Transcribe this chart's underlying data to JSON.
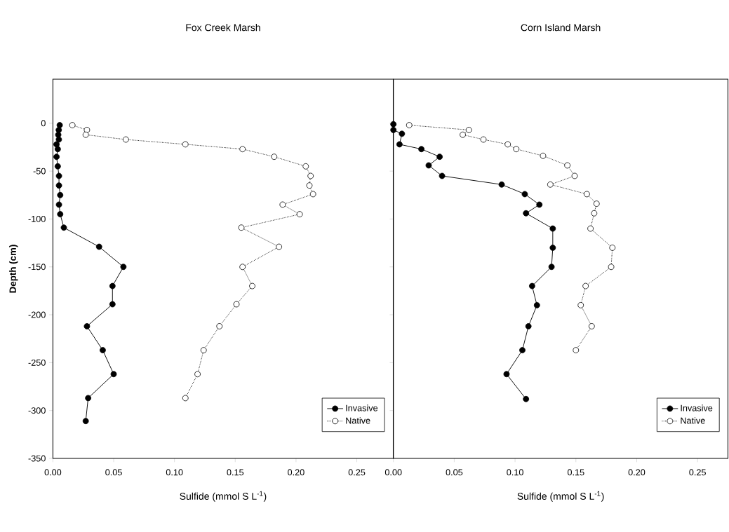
{
  "chart_data": [
    {
      "type": "line",
      "title": "Fox Creek Marsh",
      "xlabel": "Sulfide (mmol S L$^{-1}$)",
      "ylabel": "Depth (cm)",
      "xlim": [
        0,
        0.28
      ],
      "ylim": [
        -350,
        46
      ],
      "xticks": [
        {
          "value": 0,
          "label": "0.00"
        },
        {
          "value": 0.05,
          "label": "0.05"
        },
        {
          "value": 0.1,
          "label": "0.10"
        },
        {
          "value": 0.15,
          "label": "0.15"
        },
        {
          "value": 0.2,
          "label": "0.20"
        },
        {
          "value": 0.25,
          "label": "0.25"
        }
      ],
      "yticks": [
        -350,
        -300,
        -250,
        -200,
        -150,
        -100,
        -50,
        0
      ],
      "marker": "circle",
      "legend": "bottom right",
      "grid": false,
      "series": [
        {
          "name": "Invasive",
          "color": "#000000",
          "line_style": "solid",
          "x": [
            0.0056,
            0.0048,
            0.0044,
            0.0049,
            0.003,
            0.004,
            0.003,
            0.004,
            0.005,
            0.005,
            0.006,
            0.005,
            0.006,
            0.009,
            0.038,
            0.058,
            0.049,
            0.049,
            0.028,
            0.041,
            0.05,
            0.029,
            0.027
          ],
          "values": [
            -2,
            -7,
            -12,
            -17,
            -22,
            -27,
            -35,
            -45,
            -55,
            -65,
            -75,
            -85,
            -95,
            -109,
            -129,
            -150,
            -170,
            -189,
            -212,
            -237,
            -262,
            -287,
            -311
          ]
        },
        {
          "name": "Native",
          "color": "#000000",
          "line_style": "dotted",
          "x": [
            0.016,
            0.028,
            0.027,
            0.06,
            0.109,
            0.156,
            0.182,
            0.208,
            0.212,
            0.211,
            0.214,
            0.189,
            0.203,
            0.155,
            0.186,
            0.156,
            0.164,
            0.151,
            0.137,
            0.124,
            0.119,
            0.109
          ],
          "values": [
            -2,
            -7,
            -12,
            -17,
            -22,
            -27,
            -35,
            -45,
            -55,
            -65,
            -74,
            -85,
            -95,
            -109,
            -129,
            -150,
            -170,
            -189,
            -212,
            -237,
            -262,
            -287
          ]
        }
      ]
    },
    {
      "type": "line",
      "title": "Corn Island Marsh",
      "xlabel": "Sulfide (mmol S L$^{-1}$)",
      "xlim": [
        0,
        0.275
      ],
      "ylim": [
        -350,
        46
      ],
      "xticks": [
        {
          "value": 0,
          "label": "0.00"
        },
        {
          "value": 0.05,
          "label": "0.05"
        },
        {
          "value": 0.1,
          "label": "0.10"
        },
        {
          "value": 0.15,
          "label": "0.15"
        },
        {
          "value": 0.2,
          "label": "0.20"
        },
        {
          "value": 0.25,
          "label": "0.25"
        }
      ],
      "yticks": [
        -350,
        -300,
        -250,
        -200,
        -150,
        -100,
        -50,
        0
      ],
      "tick_labels": "x",
      "marker": "circle",
      "legend": "bottom right",
      "grid": false,
      "series": [
        {
          "name": "Invasive",
          "color": "#000000",
          "line_style": "solid",
          "x": [
            0.0,
            0.0,
            0.007,
            0.005,
            0.023,
            0.038,
            0.029,
            0.04,
            0.089,
            0.108,
            0.12,
            0.109,
            0.131,
            0.131,
            0.13,
            0.114,
            0.118,
            0.111,
            0.106,
            0.093,
            0.109
          ],
          "values": [
            -1,
            -7,
            -11,
            -22,
            -27,
            -35,
            -44,
            -55,
            -64,
            -74,
            -85,
            -94,
            -110,
            -130,
            -150,
            -170,
            -190,
            -212,
            -237,
            -262,
            -288
          ]
        },
        {
          "name": "Native",
          "color": "#000000",
          "line_style": "dotted",
          "x": [
            0.013,
            0.062,
            0.057,
            0.074,
            0.094,
            0.101,
            0.123,
            0.143,
            0.149,
            0.129,
            0.159,
            0.167,
            0.165,
            0.162,
            0.18,
            0.179,
            0.158,
            0.154,
            0.163,
            0.15
          ],
          "values": [
            -2,
            -7,
            -12,
            -17,
            -22,
            -27,
            -34,
            -44,
            -55,
            -64,
            -74,
            -84,
            -94,
            -110,
            -130,
            -150,
            -170,
            -190,
            -212,
            -237
          ]
        }
      ]
    }
  ]
}
